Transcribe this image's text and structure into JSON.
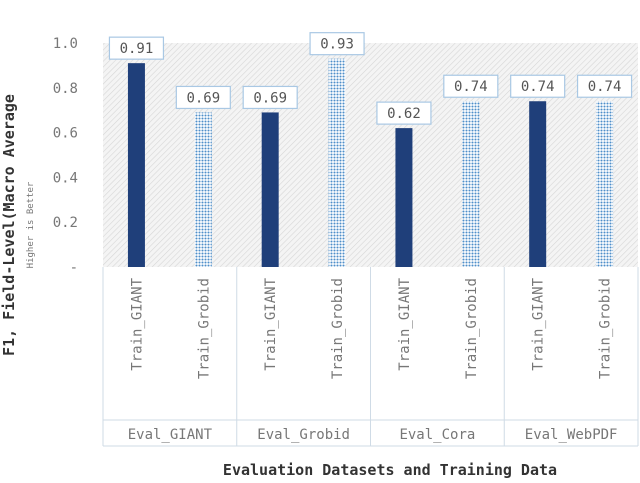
{
  "chart_data": {
    "type": "bar",
    "title": "",
    "ylabel": "F1, Field-Level(Macro Average",
    "ysublabel": "Higher is Better",
    "xlabel": "Evaluation Datasets and Training Data",
    "ylim": [
      0,
      1.0
    ],
    "yticks": [
      0,
      0.2,
      0.4,
      0.6,
      0.8,
      1.0
    ],
    "ytick_labels": [
      "-",
      "0.2",
      "0.4",
      "0.6",
      "0.8",
      "1.0"
    ],
    "grid": false,
    "groups": [
      {
        "name": "Eval_GIANT",
        "bars": [
          {
            "label": "Train_GIANT",
            "value": 0.91,
            "value_label": "0.91",
            "style": "solid"
          },
          {
            "label": "Train_Grobid",
            "value": 0.69,
            "value_label": "0.69",
            "style": "dotted"
          }
        ]
      },
      {
        "name": "Eval_Grobid",
        "bars": [
          {
            "label": "Train_GIANT",
            "value": 0.69,
            "value_label": "0.69",
            "style": "solid"
          },
          {
            "label": "Train_Grobid",
            "value": 0.93,
            "value_label": "0.93",
            "style": "dotted"
          }
        ]
      },
      {
        "name": "Eval_Cora",
        "bars": [
          {
            "label": "Train_GIANT",
            "value": 0.62,
            "value_label": "0.62",
            "style": "solid"
          },
          {
            "label": "Train_Grobid",
            "value": 0.74,
            "value_label": "0.74",
            "style": "dotted"
          }
        ]
      },
      {
        "name": "Eval_WebPDF",
        "bars": [
          {
            "label": "Train_GIANT",
            "value": 0.74,
            "value_label": "0.74",
            "style": "solid"
          },
          {
            "label": "Train_Grobid",
            "value": 0.74,
            "value_label": "0.74",
            "style": "dotted"
          }
        ]
      }
    ],
    "colors": {
      "solid": "#1f3f7a",
      "dotted": "#7fb2dc",
      "label_border": "#a9c8e4",
      "frame": "#cfdbe6"
    }
  }
}
